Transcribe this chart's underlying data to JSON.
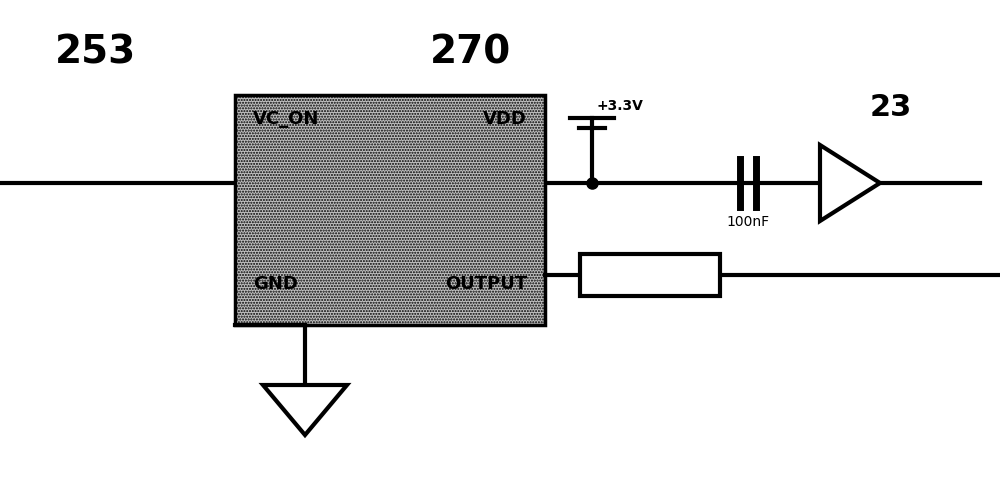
{
  "background_color": "#ffffff",
  "label_253": "253",
  "label_270": "270",
  "label_23": "23",
  "label_vdd_supply": "+3.3V",
  "label_100nF": "100nF",
  "label_vc_on": "VC_ON",
  "label_vdd_pin": "VDD",
  "label_gnd": "GND",
  "label_output": "OUTPUT",
  "line_color": "#000000",
  "line_width": 2.0,
  "fig_width": 10.0,
  "fig_height": 4.83,
  "dpi": 100
}
